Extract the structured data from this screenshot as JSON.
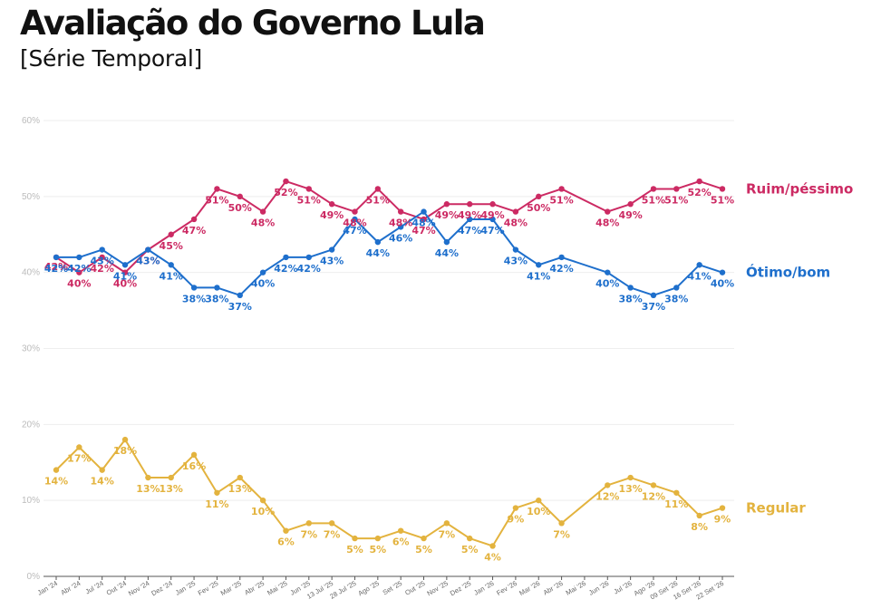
{
  "header": {
    "title": "Avaliação do Governo Lula",
    "subtitle": "[Série Temporal]"
  },
  "chart_data": {
    "type": "line",
    "title": "Avaliação do Governo Lula",
    "subtitle": "[Série Temporal]",
    "y_ticks": [
      "0%",
      "10%",
      "20%",
      "30%",
      "40%",
      "50%",
      "60%"
    ],
    "ylim": [
      0,
      60
    ],
    "grid": true,
    "legend": "right",
    "x": [
      "Jan '24",
      "Abr '24",
      "Jul '24",
      "Out '24",
      "Nov '24",
      "Dez '24",
      "Jan '25",
      "Fev '25",
      "Mar '25",
      "Abr '25",
      "Mai '25",
      "Jun '25",
      "13 Jul '25",
      "28 Jul '25",
      "Ago '25",
      "Set '25",
      "Out '25",
      "Nov '25",
      "Dez '25",
      "Jan '26",
      "Fev '26",
      "Mar '26",
      "Abr '26",
      "Mai '26",
      "Jun '26",
      "Jul '26",
      "Ago '26",
      "09 Set '26",
      "16 Set '26",
      "22 Set '26"
    ],
    "series": [
      {
        "name": "Ruim/péssimo",
        "color": "#cc2a63",
        "values": [
          42,
          40,
          42,
          40,
          43,
          45,
          47,
          51,
          50,
          48,
          52,
          51,
          49,
          48,
          51,
          48,
          47,
          49,
          49,
          49,
          48,
          50,
          51,
          null,
          48,
          49,
          51,
          51,
          52,
          51
        ],
        "labels": [
          "42%",
          "40%",
          "42%",
          "40%",
          "43%",
          "45%",
          "47%",
          "51%",
          "50%",
          "48%",
          "52%",
          "51%",
          "49%",
          "48%",
          "51%",
          "48%",
          "47%",
          "49%",
          "49%",
          "49%",
          "48%",
          "50%",
          "51%",
          "",
          "48%",
          "49%",
          "51%",
          "51%",
          "52%",
          "51%"
        ]
      },
      {
        "name": "Ótimo/bom",
        "color": "#1e6fcc",
        "values": [
          42,
          42,
          43,
          41,
          43,
          41,
          38,
          38,
          37,
          40,
          42,
          42,
          43,
          47,
          44,
          46,
          48,
          44,
          47,
          47,
          43,
          41,
          42,
          null,
          40,
          38,
          37,
          38,
          41,
          40
        ],
        "labels": [
          "42%",
          "42%",
          "43%",
          "41%",
          "43%",
          "41%",
          "38%",
          "38%",
          "37%",
          "40%",
          "42%",
          "42%",
          "43%",
          "47%",
          "44%",
          "46%",
          "48%",
          "44%",
          "47%",
          "47%",
          "43%",
          "41%",
          "42%",
          "",
          "40%",
          "38%",
          "37%",
          "38%",
          "41%",
          "40%"
        ]
      },
      {
        "name": "Regular",
        "color": "#e3b33e",
        "values": [
          14,
          17,
          14,
          18,
          13,
          13,
          16,
          11,
          13,
          10,
          6,
          7,
          7,
          5,
          5,
          6,
          5,
          7,
          5,
          4,
          9,
          10,
          7,
          null,
          12,
          13,
          12,
          11,
          8,
          9
        ],
        "labels": [
          "14%",
          "17%",
          "14%",
          "18%",
          "13%",
          "13%",
          "16%",
          "11%",
          "13%",
          "10%",
          "6%",
          "7%",
          "7%",
          "5%",
          "5%",
          "6%",
          "5%",
          "7%",
          "5%",
          "4%",
          "9%",
          "10%",
          "7%",
          "",
          "12%",
          "13%",
          "12%",
          "11%",
          "8%",
          "9%"
        ]
      }
    ]
  }
}
